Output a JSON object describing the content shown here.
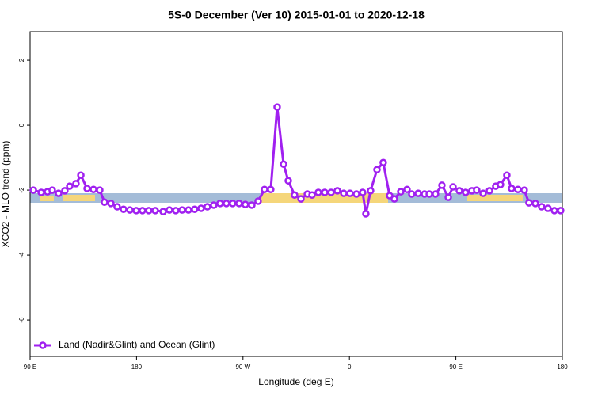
{
  "chart_data": {
    "type": "line",
    "title": "5S-0 December (Ver 10)   2015-01-01 to 2020-12-18",
    "x_label": "Longitude (deg E)",
    "y_label": "XCO2 - MLO trend (ppm)",
    "xlim": [
      90,
      540
    ],
    "ylim": [
      -7.12,
      2.88
    ],
    "xticks": [
      {
        "value": 90,
        "label": "90 E"
      },
      180,
      {
        "value": 270,
        "label": "90 W"
      },
      {
        "value": 360,
        "label": "0"
      },
      {
        "value": 450,
        "label": "90 E"
      },
      {
        "value": 540,
        "label": "180"
      }
    ],
    "yticks": [
      -6,
      -4,
      -2,
      0,
      2
    ],
    "legend": "bottom-left",
    "x": [
      92.7,
      99.4,
      104.7,
      108.7,
      114.1,
      119.4,
      123.5,
      128.8,
      132.9,
      138.2,
      143.6,
      148.9,
      152.9,
      158.3,
      163.6,
      169,
      174.4,
      179.7,
      185,
      190.4,
      195.8,
      202.5,
      207.8,
      213.2,
      218.5,
      223.9,
      229.2,
      234.6,
      239.9,
      245.3,
      250.6,
      256,
      261.3,
      266.7,
      272,
      277.5,
      282.8,
      288.2,
      293.5,
      298.9,
      304.3,
      308.3,
      313.6,
      319,
      324.4,
      328.4,
      333.7,
      339.1,
      344.5,
      349.8,
      355.2,
      360.5,
      365.9,
      371.2,
      373.9,
      377.9,
      383.3,
      388.6,
      394,
      398,
      403.4,
      408.7,
      412.7,
      418.1,
      423.5,
      427.5,
      432.8,
      438.2,
      443.6,
      447.6,
      452.9,
      458.3,
      463.6,
      467.6,
      473,
      478.4,
      483.7,
      487.7,
      493.1,
      497.1,
      502.5,
      507.8,
      511.8,
      517.2,
      522.5,
      527.9,
      533.3,
      538.6
    ],
    "series": [
      {
        "name": "Land (Nadir&Glint) and Ocean (Glint)",
        "color": "#a020f0",
        "values": [
          -2.0,
          -2.07,
          -2.05,
          -2.0,
          -2.1,
          -2.02,
          -1.88,
          -1.8,
          -1.54,
          -1.95,
          -1.98,
          -2.0,
          -2.37,
          -2.41,
          -2.51,
          -2.59,
          -2.61,
          -2.63,
          -2.63,
          -2.63,
          -2.63,
          -2.66,
          -2.61,
          -2.63,
          -2.61,
          -2.61,
          -2.59,
          -2.56,
          -2.51,
          -2.46,
          -2.41,
          -2.41,
          -2.41,
          -2.41,
          -2.44,
          -2.46,
          -2.34,
          -1.98,
          -1.98,
          0.56,
          -1.2,
          -1.71,
          -2.15,
          -2.27,
          -2.12,
          -2.15,
          -2.07,
          -2.07,
          -2.07,
          -2.02,
          -2.1,
          -2.1,
          -2.12,
          -2.07,
          -2.73,
          -2.02,
          -1.37,
          -1.15,
          -2.17,
          -2.27,
          -2.05,
          -1.98,
          -2.12,
          -2.1,
          -2.12,
          -2.12,
          -2.12,
          -1.85,
          -2.22,
          -1.9,
          -2.02,
          -2.07,
          -2.02,
          -2.0,
          -2.1,
          -2.02,
          -1.88,
          -1.83,
          -1.54,
          -1.95,
          -1.98,
          -2.0,
          -2.39,
          -2.41,
          -2.51,
          -2.56,
          -2.63,
          -2.63
        ]
      }
    ]
  }
}
